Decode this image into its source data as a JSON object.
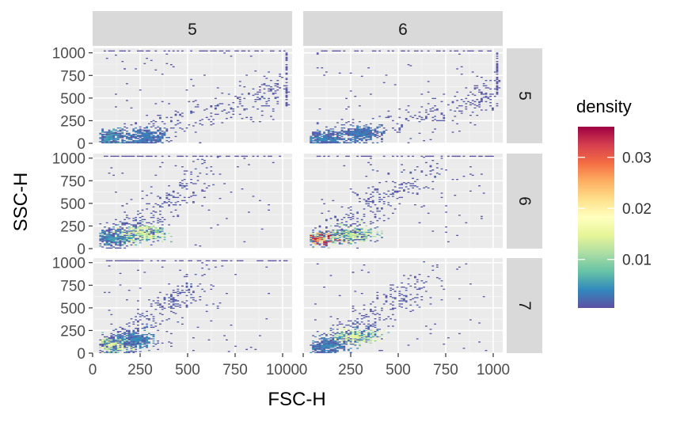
{
  "chart_data": {
    "type": "heatmap",
    "title": "",
    "xlabel": "FSC-H",
    "ylabel": "SSC-H",
    "xlim": [
      0,
      1050
    ],
    "ylim": [
      0,
      1050
    ],
    "x_ticks": [
      {
        "value": 0,
        "label": "0"
      },
      {
        "value": 250,
        "label": "250"
      },
      {
        "value": 500,
        "label": "500"
      },
      {
        "value": 750,
        "label": "750"
      },
      {
        "value": 1000,
        "label": "1000"
      }
    ],
    "y_ticks": [
      {
        "value": 0,
        "label": "0"
      },
      {
        "value": 250,
        "label": "250"
      },
      {
        "value": 500,
        "label": "500"
      },
      {
        "value": 750,
        "label": "750"
      },
      {
        "value": 1000,
        "label": "1000"
      }
    ],
    "grid": true,
    "col_facets": [
      "5",
      "6"
    ],
    "row_facets": [
      "5",
      "6",
      "7"
    ],
    "legend": {
      "title": "density",
      "position": "right",
      "breaks": [
        {
          "value": 0.01,
          "label": "0.01"
        },
        {
          "value": 0.02,
          "label": "0.02"
        },
        {
          "value": 0.03,
          "label": "0.03"
        }
      ],
      "range": [
        0.0005,
        0.036
      ],
      "colors": [
        "#5E4FA2",
        "#3288BD",
        "#66C2A5",
        "#ABDDA4",
        "#E6F598",
        "#FFFFBF",
        "#FEE08B",
        "#FDAE61",
        "#F46D43",
        "#D53E4F",
        "#9E0142"
      ]
    },
    "panels": [
      {
        "col": "5",
        "row": "5",
        "clusters": [
          {
            "x": 80,
            "y": 60,
            "density": 0.006
          },
          {
            "x": 280,
            "y": 70,
            "density": 0.004
          }
        ],
        "trend": [
          [
            40,
            20
          ],
          [
            300,
            120
          ],
          [
            600,
            320
          ],
          [
            900,
            520
          ],
          [
            1020,
            650
          ]
        ],
        "edge_x": 1023,
        "edge_y": 1023
      },
      {
        "col": "6",
        "row": "5",
        "clusters": [
          {
            "x": 100,
            "y": 40,
            "density": 0.005
          },
          {
            "x": 300,
            "y": 110,
            "density": 0.004
          }
        ],
        "trend": [
          [
            40,
            20
          ],
          [
            300,
            110
          ],
          [
            600,
            280
          ],
          [
            900,
            460
          ],
          [
            1020,
            620
          ]
        ],
        "edge_x": 1023,
        "edge_y": 1023
      },
      {
        "col": "5",
        "row": "6",
        "clusters": [
          {
            "x": 100,
            "y": 120,
            "density": 0.006
          },
          {
            "x": 270,
            "y": 165,
            "density": 0.016
          }
        ],
        "trend": [
          [
            50,
            60
          ],
          [
            200,
            250
          ],
          [
            400,
            500
          ],
          [
            600,
            800
          ]
        ],
        "edge_x": null,
        "edge_y": 1023
      },
      {
        "col": "6",
        "row": "6",
        "clusters": [
          {
            "x": 70,
            "y": 105,
            "density": 0.035
          },
          {
            "x": 260,
            "y": 155,
            "density": 0.015
          }
        ],
        "trend": [
          [
            50,
            60
          ],
          [
            250,
            300
          ],
          [
            450,
            600
          ],
          [
            700,
            900
          ]
        ],
        "edge_x": null,
        "edge_y": 1023
      },
      {
        "col": "5",
        "row": "7",
        "clusters": [
          {
            "x": 100,
            "y": 90,
            "density": 0.017
          },
          {
            "x": 230,
            "y": 150,
            "density": 0.005
          }
        ],
        "trend": [
          [
            40,
            30
          ],
          [
            200,
            250
          ],
          [
            400,
            550
          ],
          [
            600,
            800
          ]
        ],
        "edge_x": null,
        "edge_y": 1023
      },
      {
        "col": "6",
        "row": "7",
        "clusters": [
          {
            "x": 280,
            "y": 185,
            "density": 0.018
          },
          {
            "x": 120,
            "y": 80,
            "density": 0.005
          }
        ],
        "trend": [
          [
            60,
            40
          ],
          [
            250,
            250
          ],
          [
            450,
            550
          ],
          [
            650,
            800
          ]
        ],
        "edge_x": null,
        "edge_y": null
      }
    ]
  }
}
